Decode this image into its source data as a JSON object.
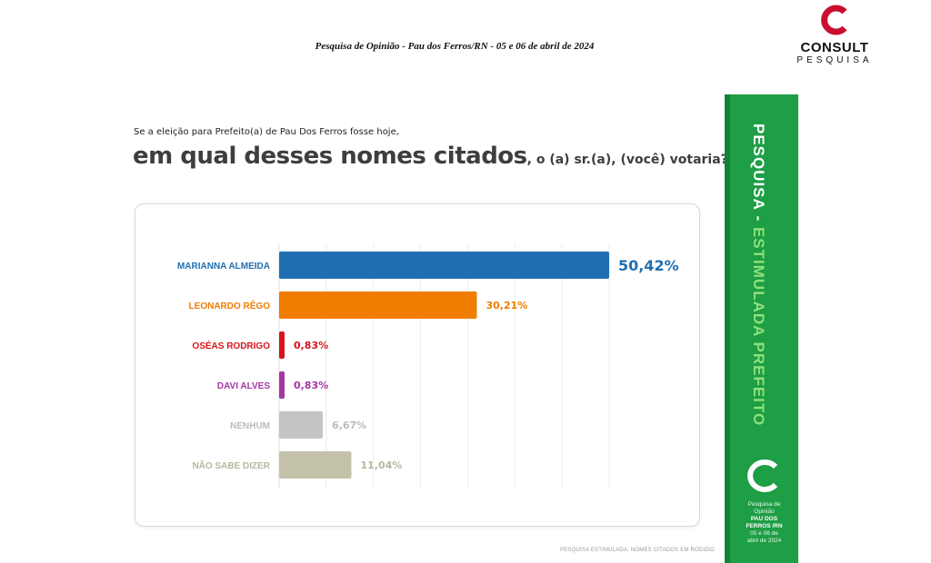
{
  "header": {
    "title": "Pesquisa de Opinião  -  Pau dos Ferros/RN  -  05 e 06 de abril de 2024"
  },
  "logo": {
    "brand": "CONSULT",
    "sub": "PESQUISA",
    "color": "#c8102e"
  },
  "question": {
    "line1": "Se a eleição para Prefeito(a) de Pau Dos Ferros fosse hoje,",
    "line2_bold": "em qual desses nomes citados",
    "line2_rest": ", o (a) sr.(a), (você) votaria?"
  },
  "chart_data": {
    "type": "bar",
    "orientation": "horizontal",
    "categories": [
      "MARIANNA ALMEIDA",
      "LEONARDO RÊGO",
      "OSÉAS RODRIGO",
      "DAVI ALVES",
      "NENHUM",
      "NÃO SABE DIZER"
    ],
    "values": [
      50.42,
      30.21,
      0.83,
      0.83,
      6.67,
      11.04
    ],
    "value_labels": [
      "50,42%",
      "30,21%",
      "0,83%",
      "0,83%",
      "6,67%",
      "11,04%"
    ],
    "colors": [
      "#1f6fb2",
      "#f07d00",
      "#d7141a",
      "#a535a5",
      "#c4c4c4",
      "#c3c2a9"
    ],
    "label_colors": [
      "#1f6fb2",
      "#f07d00",
      "#d7141a",
      "#a535a5",
      "#bcbcbc",
      "#b7b6a0"
    ],
    "xlim": [
      0,
      50.42
    ],
    "grid": true
  },
  "footnote": "PESQUISA ESTIMULADA. NOMES CITADOS EM RODIZIO",
  "side_band": {
    "word1": "PESQUISA",
    "dash": " - ",
    "word2": "ESTIMULADA PREFEITO",
    "info_line1": "Pesquisa de",
    "info_line2": "Opinião",
    "info_line3": "PAU DOS",
    "info_line4": "FERROS /RN",
    "info_line5": "05 e 06 de",
    "info_line6": "abril de 2024",
    "color": "#1e9e45"
  }
}
